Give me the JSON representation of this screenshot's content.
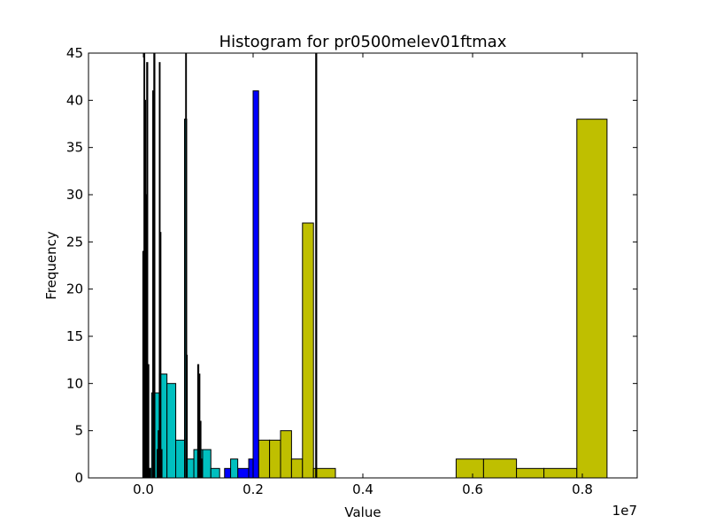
{
  "chart_data": {
    "type": "bar",
    "title": "Histogram for pr0500melev01ftmax",
    "xlabel": "Value",
    "ylabel": "Frequency",
    "x_multiplier_label": "1e7",
    "xlim": [
      -1000000,
      9000000
    ],
    "ylim": [
      0,
      45
    ],
    "xticks": [
      {
        "value": 0,
        "label": "0.0"
      },
      {
        "value": 2000000,
        "label": "0.2"
      },
      {
        "value": 4000000,
        "label": "0.4"
      },
      {
        "value": 6000000,
        "label": "0.6"
      },
      {
        "value": 8000000,
        "label": "0.8"
      }
    ],
    "yticks": [
      0,
      5,
      10,
      15,
      20,
      25,
      30,
      35,
      40,
      45
    ],
    "grid": false,
    "series": [
      {
        "color": "#bfbf00",
        "bars": [
          [
            2100000,
            2300000,
            4
          ],
          [
            2300000,
            2500000,
            4
          ],
          [
            2500000,
            2700000,
            5
          ],
          [
            2700000,
            2900000,
            2
          ],
          [
            2900000,
            3100000,
            27
          ],
          [
            3100000,
            3500000,
            1
          ],
          [
            5700000,
            6200000,
            2
          ],
          [
            6200000,
            6800000,
            2
          ],
          [
            6800000,
            7300000,
            1
          ],
          [
            7300000,
            7900000,
            1
          ],
          [
            7900000,
            8450000,
            38
          ]
        ]
      },
      {
        "color": "#0000ff",
        "bars": [
          [
            830000,
            960000,
            1
          ],
          [
            1480000,
            1590000,
            1
          ],
          [
            1720000,
            1920000,
            1
          ],
          [
            1920000,
            2000000,
            2
          ],
          [
            2000000,
            2100000,
            41
          ]
        ]
      },
      {
        "color": "#00bfbf",
        "bars": [
          [
            50000,
            150000,
            1
          ],
          [
            150000,
            290000,
            9
          ],
          [
            290000,
            430000,
            11
          ],
          [
            430000,
            590000,
            10
          ],
          [
            590000,
            750000,
            4
          ],
          [
            750000,
            790000,
            38
          ],
          [
            790000,
            920000,
            2
          ],
          [
            920000,
            1080000,
            3
          ],
          [
            1080000,
            1230000,
            3
          ],
          [
            1230000,
            1390000,
            1
          ],
          [
            1590000,
            1720000,
            2
          ]
        ]
      },
      {
        "color": "#ff0000",
        "bars": [
          [
            0,
            30000,
            1
          ],
          [
            30000,
            60000,
            9
          ]
        ]
      },
      {
        "color": "#000000",
        "bars": [
          [
            -10000,
            10000,
            24
          ],
          [
            10000,
            25000,
            45
          ],
          [
            25000,
            40000,
            40
          ],
          [
            40000,
            60000,
            30
          ],
          [
            60000,
            80000,
            44
          ],
          [
            80000,
            100000,
            12
          ],
          [
            110000,
            130000,
            1
          ],
          [
            170000,
            190000,
            41
          ],
          [
            190000,
            210000,
            45
          ],
          [
            250000,
            270000,
            3
          ],
          [
            270000,
            290000,
            5
          ],
          [
            290000,
            305000,
            44
          ],
          [
            305000,
            320000,
            26
          ],
          [
            320000,
            340000,
            3
          ],
          [
            770000,
            785000,
            45
          ],
          [
            785000,
            800000,
            13
          ],
          [
            990000,
            1010000,
            12
          ],
          [
            1010000,
            1030000,
            11
          ],
          [
            1030000,
            1050000,
            6
          ],
          [
            1050000,
            1070000,
            2
          ],
          [
            3140000,
            3160000,
            45
          ]
        ]
      }
    ]
  }
}
